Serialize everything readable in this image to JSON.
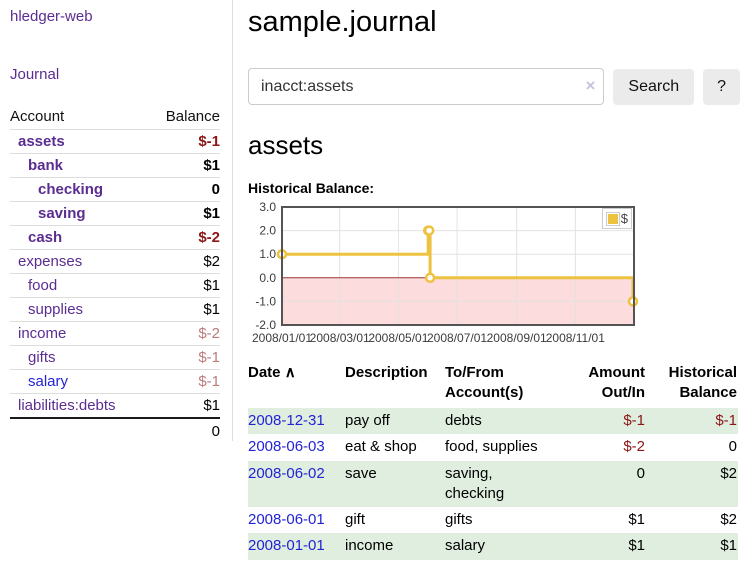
{
  "sidebar": {
    "brand": "hledger-web",
    "journal_link": "Journal",
    "accounts_table": {
      "header_account": "Account",
      "header_balance": "Balance",
      "rows": [
        {
          "name": "assets",
          "balance": "$-1",
          "level": 1,
          "bold": true,
          "negative": "strong"
        },
        {
          "name": "bank",
          "balance": "$1",
          "level": 2,
          "bold": true,
          "negative": "none"
        },
        {
          "name": "checking",
          "balance": "0",
          "level": 3,
          "bold": true,
          "negative": "none"
        },
        {
          "name": "saving",
          "balance": "$1",
          "level": 3,
          "bold": true,
          "negative": "none"
        },
        {
          "name": "cash",
          "balance": "$-2",
          "level": 2,
          "bold": true,
          "negative": "strong"
        },
        {
          "name": "expenses",
          "balance": "$2",
          "level": 1,
          "bold": false,
          "negative": "none"
        },
        {
          "name": "food",
          "balance": "$1",
          "level": 2,
          "bold": false,
          "negative": "none"
        },
        {
          "name": "supplies",
          "balance": "$1",
          "level": 2,
          "bold": false,
          "negative": "none"
        },
        {
          "name": "income",
          "balance": "$-2",
          "level": 1,
          "bold": false,
          "negative": "soft"
        },
        {
          "name": "gifts",
          "balance": "$-1",
          "level": 2,
          "bold": false,
          "negative": "soft"
        },
        {
          "name": "salary",
          "balance": "$-1",
          "level": 2,
          "bold": false,
          "negative": "soft",
          "link_color": "blue"
        },
        {
          "name": "liabilities:debts",
          "balance": "$1",
          "level": 1,
          "bold": false,
          "negative": "none"
        }
      ],
      "total": "0"
    }
  },
  "header": {
    "title": "sample.journal"
  },
  "search": {
    "query": "inacct:assets",
    "clear_icon": "×",
    "search_label": "Search",
    "help_label": "?"
  },
  "account_page": {
    "heading": "assets",
    "chart_label": "Historical Balance:"
  },
  "chart_data": {
    "type": "line",
    "step": true,
    "title": "Historical Balance",
    "series": [
      {
        "name": "$",
        "color": "#edc240",
        "points": [
          [
            "2008-01-01",
            1
          ],
          [
            "2008-06-01",
            2
          ],
          [
            "2008-06-02",
            2
          ],
          [
            "2008-06-03",
            0
          ],
          [
            "2008-12-31",
            -1
          ]
        ]
      }
    ],
    "x_range": [
      "2008-01-01",
      "2009-01-01"
    ],
    "x_ticks": [
      "2008/01/01",
      "2008/03/01",
      "2008/05/01",
      "2008/07/01",
      "2008/09/01",
      "2008/11/01"
    ],
    "y_ticks": [
      3.0,
      2.0,
      1.0,
      0.0,
      -1.0,
      -2.0
    ],
    "ylim": [
      -2,
      3
    ],
    "grid": true,
    "negative_region_color": "#fcdcdc",
    "zero_line_color": "#993333",
    "border_color": "#545454",
    "legend": {
      "label": "$",
      "position": "top-right",
      "swatch_color": "#edc240"
    }
  },
  "register": {
    "sort_icon": "∧",
    "headers": [
      {
        "label": "Date"
      },
      {
        "label": "Description"
      },
      {
        "label": "To/From Account(s)"
      },
      {
        "label": "Amount Out/In"
      },
      {
        "label": "Historical Balance"
      }
    ],
    "rows": [
      {
        "date": "2008-12-31",
        "description": "pay off",
        "accounts": "debts",
        "amount": "$-1",
        "balance": "$-1",
        "amount_negative": true,
        "balance_negative": true
      },
      {
        "date": "2008-06-03",
        "description": "eat & shop",
        "accounts": "food, supplies",
        "amount": "$-2",
        "balance": "0",
        "amount_negative": true,
        "balance_negative": false
      },
      {
        "date": "2008-06-02",
        "description": "save",
        "accounts": "saving, checking",
        "amount": "0",
        "balance": "$2",
        "amount_negative": false,
        "balance_negative": false
      },
      {
        "date": "2008-06-01",
        "description": "gift",
        "accounts": "gifts",
        "amount": "$1",
        "balance": "$2",
        "amount_negative": false,
        "balance_negative": false
      },
      {
        "date": "2008-01-01",
        "description": "income",
        "accounts": "salary",
        "amount": "$1",
        "balance": "$1",
        "amount_negative": false,
        "balance_negative": false
      }
    ]
  }
}
